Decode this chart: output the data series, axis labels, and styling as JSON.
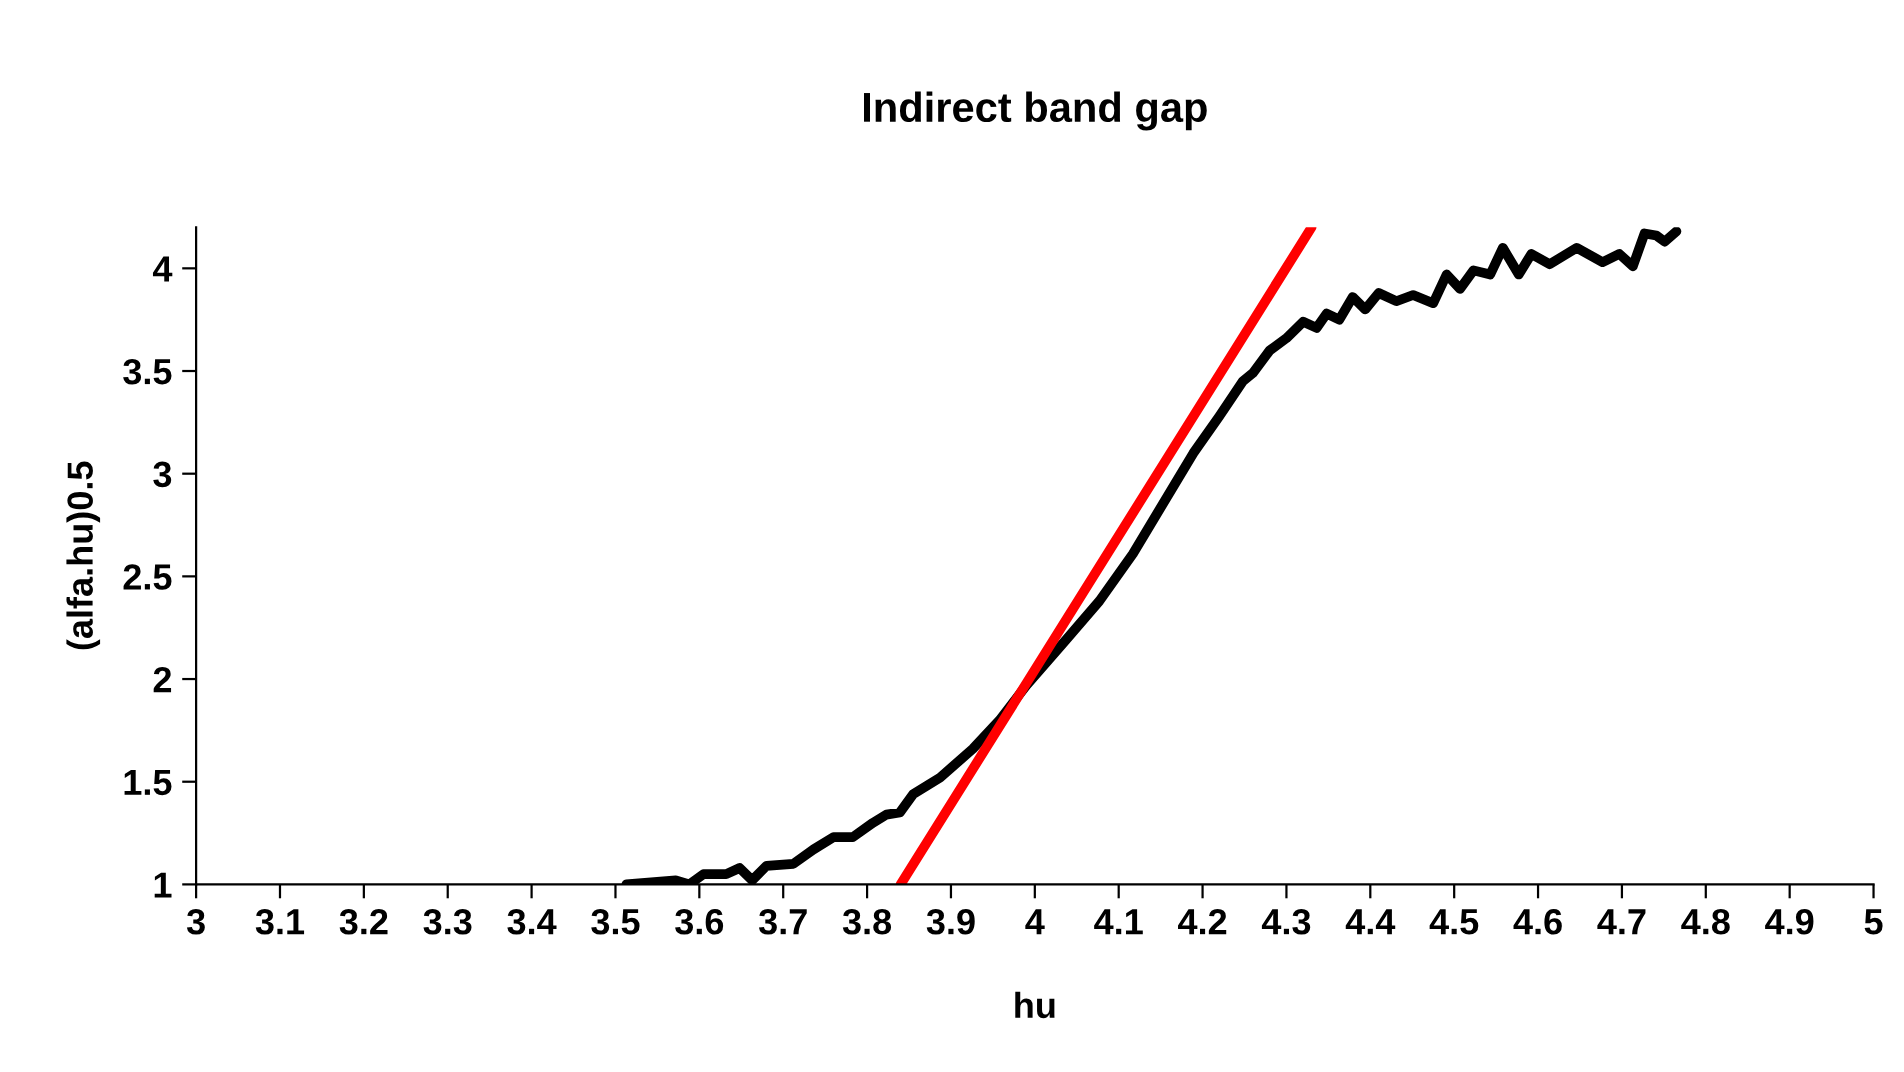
{
  "chart_data": {
    "type": "line",
    "title": "Indirect band gap",
    "xlabel": "hu",
    "ylabel": "(alfa.hu)0.5",
    "xlim": [
      3,
      5
    ],
    "ylim": [
      1,
      4.2
    ],
    "xticks": [
      3,
      3.1,
      3.2,
      3.3,
      3.4,
      3.5,
      3.6,
      3.7,
      3.8,
      3.9,
      4,
      4.1,
      4.2,
      4.3,
      4.4,
      4.5,
      4.6,
      4.7,
      4.8,
      4.9,
      5
    ],
    "yticks": [
      1,
      1.5,
      2,
      2.5,
      3,
      3.5,
      4
    ],
    "grid": false,
    "marker": "none",
    "line_style": "solid",
    "series": [
      {
        "color": "#000000",
        "x": [
          3.513,
          3.572,
          3.588,
          3.605,
          3.632,
          3.648,
          3.663,
          3.68,
          3.712,
          3.736,
          3.76,
          3.783,
          3.807,
          3.823,
          3.839,
          3.855,
          3.887,
          3.926,
          3.958,
          3.99,
          4.037,
          4.077,
          4.117,
          4.189,
          4.22,
          4.248,
          4.26,
          4.28,
          4.3,
          4.32,
          4.336,
          4.348,
          4.363,
          4.379,
          4.394,
          4.41,
          4.431,
          4.451,
          4.475,
          4.491,
          4.507,
          4.523,
          4.543,
          4.558,
          4.577,
          4.592,
          4.614,
          4.646,
          4.677,
          4.697,
          4.713,
          4.727,
          4.741,
          4.751,
          4.765
        ],
        "values": [
          1.0,
          1.02,
          1.0,
          1.05,
          1.05,
          1.08,
          1.02,
          1.09,
          1.1,
          1.17,
          1.23,
          1.23,
          1.3,
          1.34,
          1.35,
          1.44,
          1.52,
          1.66,
          1.8,
          1.97,
          2.19,
          2.38,
          2.61,
          3.1,
          3.28,
          3.45,
          3.49,
          3.6,
          3.66,
          3.74,
          3.71,
          3.78,
          3.75,
          3.86,
          3.8,
          3.88,
          3.84,
          3.87,
          3.83,
          3.97,
          3.9,
          3.99,
          3.97,
          4.1,
          3.97,
          4.07,
          4.02,
          4.1,
          4.03,
          4.07,
          4.01,
          4.17,
          4.16,
          4.13,
          4.18
        ]
      },
      {
        "type": "line",
        "color": "#ff0000",
        "x": [
          3.84,
          4.33
        ],
        "values": [
          1,
          4.2
        ]
      }
    ]
  }
}
